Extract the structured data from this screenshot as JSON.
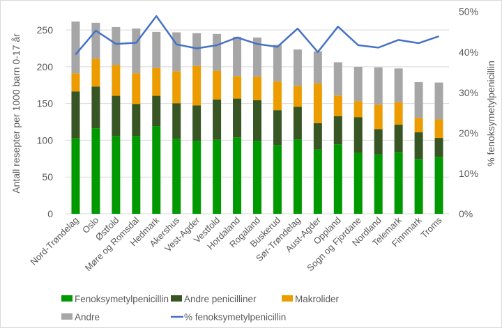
{
  "chart_data": {
    "type": "bar",
    "stacked": true,
    "title": "",
    "ylabel": "Antall resepter per 1000 barn 0-17 år",
    "y2label": "% fenoksymetylpenicillin",
    "ylim": [
      0,
      275
    ],
    "yticks": [
      0,
      50,
      100,
      150,
      200,
      250
    ],
    "y2lim": [
      0,
      50
    ],
    "y2ticks": [
      "0%",
      "10%",
      "20%",
      "30%",
      "40%",
      "50%"
    ],
    "grid": true,
    "legend_position": "bottom",
    "categories": [
      "Nord-Trøndelag",
      "Oslo",
      "Østfold",
      "Møre og Romsdal",
      "Hedmark",
      "Akershus",
      "Vest-Agder",
      "Vestfold",
      "Hordaland",
      "Rogaland",
      "Buskerud",
      "Sør-Trøndelag",
      "Aust-Agder",
      "Oppland",
      "Sogn og Fjordane",
      "Nordland",
      "Telemark",
      "Finnmark",
      "Troms"
    ],
    "series": [
      {
        "name": "Fenoksymetylpenicillin",
        "color": "#009a00",
        "axis": "left",
        "kind": "bar",
        "values": [
          102.6,
          116.4,
          105.8,
          105.8,
          119.3,
          102.0,
          99.4,
          100.7,
          103.9,
          99.4,
          93.5,
          101.0,
          87.5,
          94.4,
          82.8,
          80.9,
          84.0,
          74.6,
          77.4
        ]
      },
      {
        "name": "Andre penicilliner",
        "color": "#375623",
        "axis": "left",
        "kind": "bar",
        "values": [
          63.9,
          56.7,
          54.7,
          43.4,
          41.2,
          48.4,
          47.9,
          54.8,
          52.8,
          55.2,
          47.5,
          44.4,
          35.9,
          38.5,
          48.7,
          34.3,
          37.2,
          36.2,
          25.8
        ]
      },
      {
        "name": "Makrolider",
        "color": "#ed9c00",
        "axis": "left",
        "kind": "bar",
        "values": [
          24.5,
          37.8,
          41.9,
          41.8,
          37.8,
          43.5,
          53.8,
          39.0,
          30.6,
          32.1,
          39.1,
          28.6,
          54.1,
          27.9,
          21.8,
          33.3,
          30.5,
          19.8,
          25.2
        ]
      },
      {
        "name": "Andre",
        "color": "#a6a6a6",
        "axis": "left",
        "kind": "bar",
        "values": [
          70.6,
          48.8,
          51.6,
          61.1,
          49.1,
          52.9,
          44.7,
          50.1,
          53.5,
          53.1,
          49.8,
          49.5,
          43.5,
          45.3,
          46.6,
          50.7,
          46.0,
          48.5,
          50.1
        ]
      },
      {
        "name": "% fenoksymetylpenicillin",
        "color": "#4472c4",
        "axis": "right",
        "kind": "line",
        "values": [
          39.4,
          45.3,
          42.0,
          42.3,
          48.9,
          41.9,
          40.9,
          41.7,
          43.6,
          42.0,
          41.3,
          45.8,
          40.0,
          46.3,
          41.7,
          41.1,
          43.0,
          42.2,
          43.9
        ]
      }
    ]
  }
}
